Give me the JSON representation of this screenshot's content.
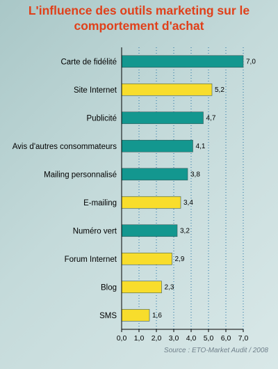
{
  "title_line1": "L'influence des outils marketing sur le",
  "title_line2": "comportement d'achat",
  "source": "Source : ETO-Market Audit / 2008",
  "colors": {
    "teal": "#13978f",
    "yellow": "#f8dd2c",
    "title": "#e0401a"
  },
  "chart_data": {
    "type": "bar",
    "orientation": "horizontal",
    "categories": [
      "Carte de fidélité",
      "Site Internet",
      "Publicité",
      "Avis d'autres consommateurs",
      "Mailing personnalisé",
      "E-mailing",
      "Numéro vert",
      "Forum Internet",
      "Blog",
      "SMS"
    ],
    "values": [
      7.0,
      5.2,
      4.7,
      4.1,
      3.8,
      3.4,
      3.2,
      2.9,
      2.3,
      1.6
    ],
    "value_labels": [
      "7,0",
      "5,2",
      "4,7",
      "4,1",
      "3,8",
      "3,4",
      "3,2",
      "2,9",
      "2,3",
      "1,6"
    ],
    "bar_colors": [
      "teal",
      "yellow",
      "teal",
      "teal",
      "teal",
      "yellow",
      "teal",
      "yellow",
      "yellow",
      "yellow"
    ],
    "xlim": [
      0,
      7
    ],
    "ticks": [
      0,
      1,
      2,
      3,
      4,
      5,
      6,
      7
    ],
    "tick_labels": [
      "0,0",
      "1,0",
      "2,0",
      "3,0",
      "4,0",
      "5,0",
      "6,0",
      "7,0"
    ],
    "grid": "vertical dotted"
  }
}
